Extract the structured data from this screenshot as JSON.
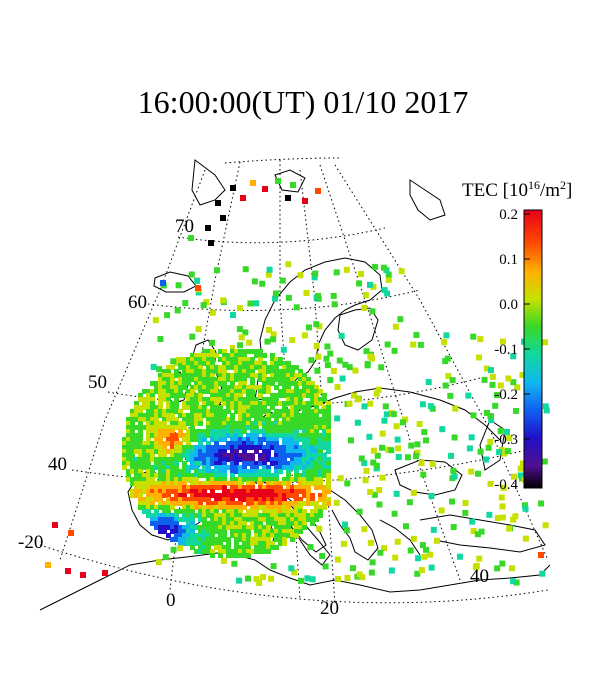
{
  "title": "16:00:00(UT)  01/10 2017",
  "colorbar": {
    "title_prefix": "TEC [10",
    "title_exp": "16",
    "title_unit": "/m",
    "title_exp2": "2",
    "title_suffix": "]",
    "ticks": [
      "0.2",
      "0.1",
      "0.0",
      "-0.1",
      "-0.2",
      "-0.3",
      "-0.4"
    ]
  },
  "map": {
    "lat_labels": [
      "70",
      "60",
      "50",
      "40"
    ],
    "lon_labels": [
      "-20",
      "0",
      "20",
      "40"
    ]
  },
  "colors": {
    "coast": "#000000",
    "grid": "#000000"
  }
}
